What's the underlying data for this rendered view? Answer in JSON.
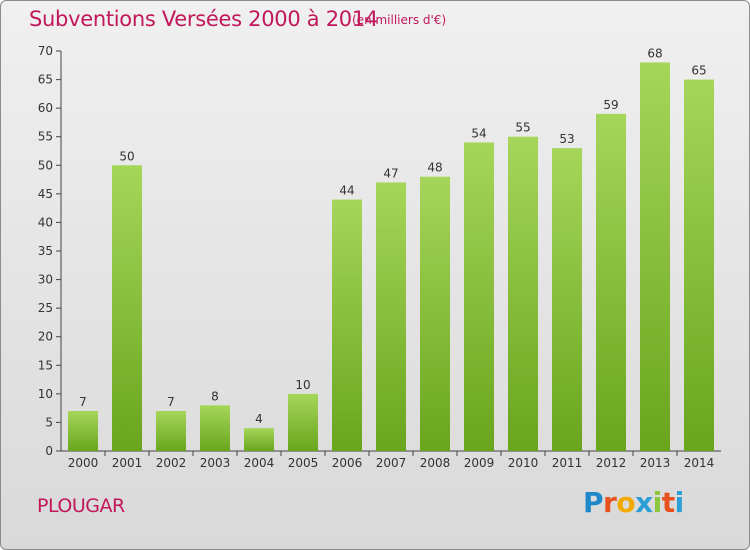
{
  "header": {
    "title": "Subventions Versées 2000 à 2014",
    "subtitle": "(en milliers d'€)"
  },
  "footer": {
    "commune": "PLOUGAR",
    "logo": {
      "letters": [
        "P",
        "r",
        "o",
        "x",
        "i",
        "t",
        "i"
      ],
      "colors": [
        "#1e88c8",
        "#e8501e",
        "#f2a900",
        "#2b9fd6",
        "#8cc63e",
        "#e8501e",
        "#2b9fd6"
      ]
    }
  },
  "chart_data": {
    "type": "bar",
    "title": "Subventions Versées 2000 à 2014",
    "subtitle": "(en milliers d'€)",
    "categories": [
      "2000",
      "2001",
      "2002",
      "2003",
      "2004",
      "2005",
      "2006",
      "2007",
      "2008",
      "2009",
      "2010",
      "2011",
      "2012",
      "2013",
      "2014"
    ],
    "values": [
      7,
      50,
      7,
      8,
      4,
      10,
      44,
      47,
      48,
      54,
      55,
      53,
      59,
      68,
      65
    ],
    "ylim": [
      0,
      70
    ],
    "yticks": [
      0,
      5,
      10,
      15,
      20,
      25,
      30,
      35,
      40,
      45,
      50,
      55,
      60,
      65,
      70
    ],
    "grid": false,
    "colors": {
      "bar_light": "#a5d65a",
      "bar_dark": "#6aa51c",
      "axis": "#444444",
      "title": "#c2185b"
    }
  }
}
